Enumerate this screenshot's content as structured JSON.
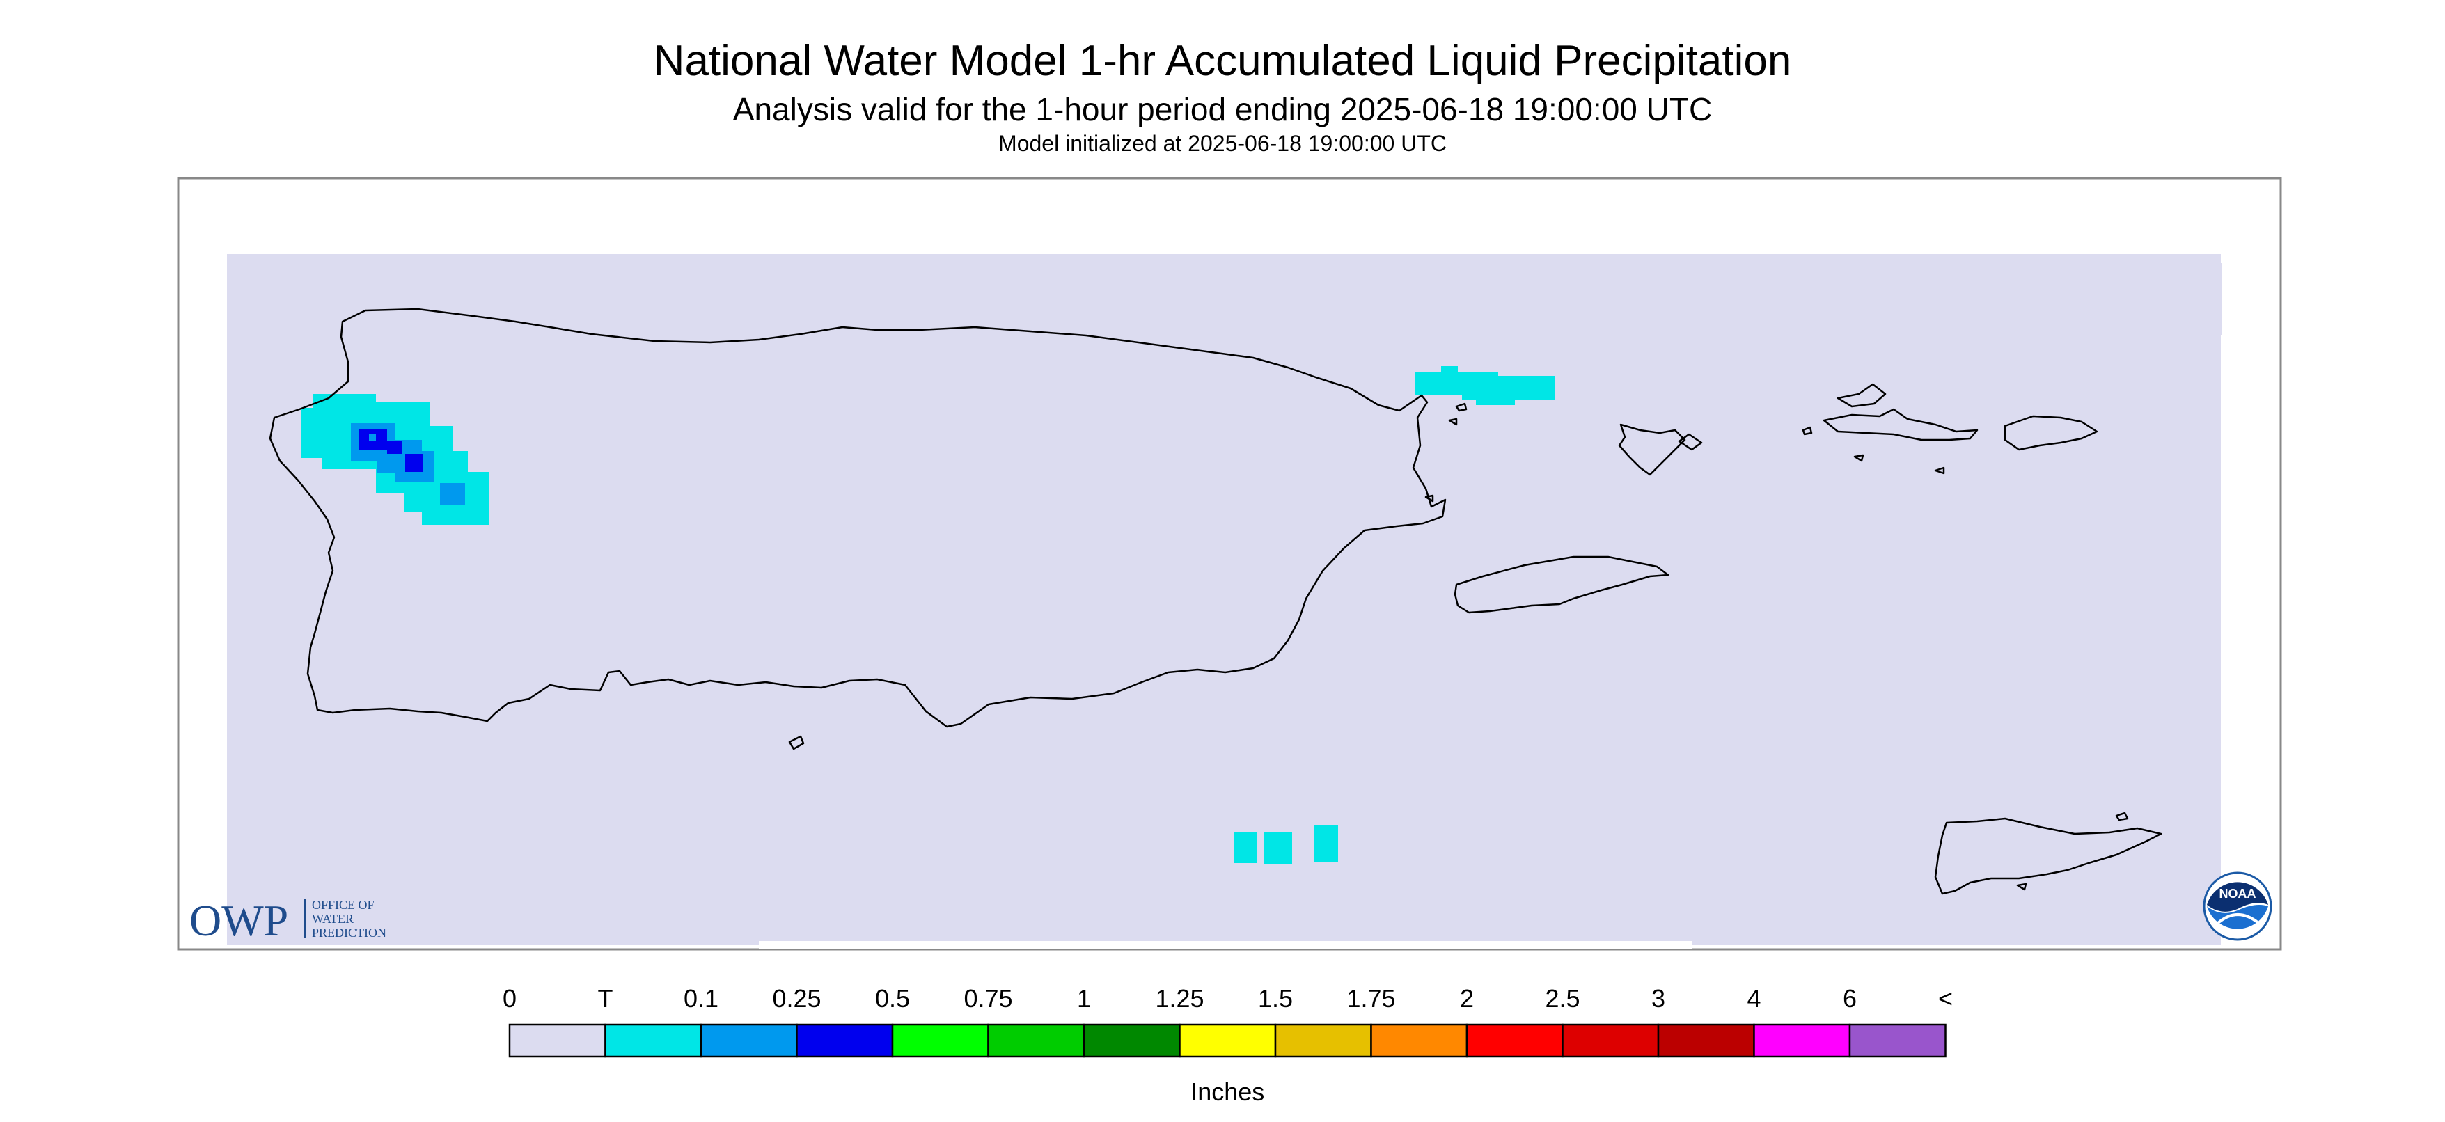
{
  "header": {
    "title": "National Water Model 1-hr Accumulated Liquid Precipitation",
    "subtitle": "Analysis valid for the 1-hour period ending 2025-06-18 19:00:00 UTC",
    "init_line": "Model initialized at 2025-06-18 19:00:00 UTC"
  },
  "logos": {
    "owp": {
      "letters": "OWP",
      "line1": "OFFICE OF",
      "line2": "WATER",
      "line3": "PREDICTION",
      "color": "#1f4c8c"
    },
    "noaa": {
      "text": "NOAA",
      "color": "#1b5aa6"
    }
  },
  "map": {
    "background_color": "#dcdcf0",
    "coastline_color": "#000000",
    "precip_areas": [
      {
        "location": "northwestern Puerto Rico",
        "category": "T to 0.25"
      },
      {
        "location": "northeast coast near Fajardo",
        "category": "T"
      },
      {
        "location": "Caribbean Sea south of Puerto Rico",
        "category": "T"
      }
    ]
  },
  "legend": {
    "unit": "Inches",
    "ticks": [
      "0",
      "T",
      "0.1",
      "0.25",
      "0.5",
      "0.75",
      "1",
      "1.25",
      "1.5",
      "1.75",
      "2",
      "2.5",
      "3",
      "4",
      "6",
      "<"
    ],
    "colors": [
      "#dcdcf0",
      "#00e6e6",
      "#0099ee",
      "#0000ee",
      "#00ff00",
      "#00cc00",
      "#008800",
      "#ffff00",
      "#e6c000",
      "#ff8800",
      "#ff0000",
      "#dd0000",
      "#bb0000",
      "#ff00ff",
      "#9955cc"
    ]
  }
}
